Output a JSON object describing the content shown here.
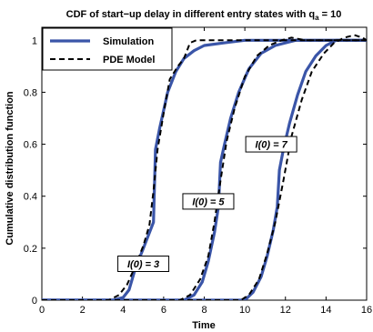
{
  "chart_data": {
    "type": "line",
    "title": "CDF of start−up delay in different entry states with q",
    "title_subscript": "a",
    "title_suffix": " = 10",
    "xlabel": "Time",
    "ylabel": "Cumulative distribution function",
    "xlim": [
      0,
      16
    ],
    "ylim": [
      0,
      1.05
    ],
    "x_ticks": [
      0,
      2,
      4,
      6,
      8,
      10,
      12,
      14,
      16
    ],
    "y_ticks": [
      0,
      0.2,
      0.4,
      0.6,
      0.8,
      1
    ],
    "x_tick_labels": [
      "0",
      "2",
      "4",
      "6",
      "8",
      "10",
      "12",
      "14",
      "16"
    ],
    "y_tick_labels": [
      "0",
      "0.2",
      "0.4",
      "0.6",
      "0.8",
      "1"
    ],
    "grid": false,
    "legend_position": "top-left",
    "series": [
      {
        "name": "Simulation",
        "style": "solid",
        "color": "#3a55a8",
        "curves": [
          {
            "x": [
              0,
              3.5,
              4.0,
              4.3,
              4.6,
              5.0,
              5.3,
              5.5,
              5.6,
              5.8,
              6.2,
              6.6,
              7.0,
              7.5,
              8.0,
              9.0,
              10.0,
              16.0
            ],
            "y": [
              0,
              0,
              0.01,
              0.04,
              0.12,
              0.2,
              0.26,
              0.3,
              0.58,
              0.66,
              0.8,
              0.88,
              0.93,
              0.96,
              0.98,
              0.99,
              1.0,
              1.0
            ]
          },
          {
            "x": [
              0,
              7.0,
              7.5,
              7.9,
              8.2,
              8.5,
              8.7,
              8.8,
              9.0,
              9.3,
              9.7,
              10.2,
              10.8,
              11.5,
              12.5,
              16.0
            ],
            "y": [
              0,
              0,
              0.02,
              0.07,
              0.15,
              0.26,
              0.36,
              0.53,
              0.6,
              0.7,
              0.8,
              0.89,
              0.95,
              0.98,
              1.0,
              1.0
            ]
          },
          {
            "x": [
              0,
              10.0,
              10.4,
              10.8,
              11.1,
              11.4,
              11.6,
              11.7,
              11.9,
              12.2,
              12.6,
              13.0,
              13.5,
              14.0,
              14.5,
              16.0
            ],
            "y": [
              0,
              0,
              0.03,
              0.09,
              0.17,
              0.27,
              0.36,
              0.5,
              0.58,
              0.68,
              0.79,
              0.88,
              0.94,
              0.98,
              1.0,
              1.0
            ]
          }
        ]
      },
      {
        "name": "PDE Model",
        "style": "dashed",
        "color": "#000000",
        "curves": [
          {
            "x": [
              0,
              3.3,
              3.8,
              4.2,
              4.6,
              5.0,
              5.3,
              5.5,
              5.7,
              6.0,
              6.3,
              6.7,
              7.0,
              7.3,
              7.6,
              8.0,
              9.0,
              16.0
            ],
            "y": [
              0,
              0,
              0.02,
              0.06,
              0.13,
              0.21,
              0.29,
              0.42,
              0.58,
              0.72,
              0.85,
              0.9,
              0.93,
              0.99,
              1.0,
              1.0,
              1.0,
              1.0
            ]
          },
          {
            "x": [
              0,
              6.8,
              7.3,
              7.8,
              8.2,
              8.5,
              8.8,
              9.1,
              9.5,
              10.0,
              10.6,
              11.2,
              11.8,
              12.3,
              13.0,
              16.0
            ],
            "y": [
              0,
              0,
              0.02,
              0.08,
              0.17,
              0.3,
              0.46,
              0.61,
              0.74,
              0.86,
              0.94,
              0.98,
              1.0,
              1.01,
              1.0,
              1.0
            ]
          },
          {
            "x": [
              0,
              9.8,
              10.2,
              10.7,
              11.1,
              11.5,
              11.9,
              12.3,
              12.8,
              13.3,
              13.9,
              14.4,
              14.9,
              15.4,
              15.8,
              16.0
            ],
            "y": [
              0,
              0,
              0.02,
              0.08,
              0.18,
              0.3,
              0.46,
              0.63,
              0.77,
              0.88,
              0.95,
              0.99,
              1.01,
              1.02,
              1.01,
              1.0
            ]
          }
        ]
      }
    ],
    "annotations": [
      {
        "text": "I(0) = 3",
        "x": 5.0,
        "y": 0.14
      },
      {
        "text": "I(0) = 5",
        "x": 8.2,
        "y": 0.38
      },
      {
        "text": "I(0) = 7",
        "x": 11.3,
        "y": 0.6
      }
    ]
  }
}
